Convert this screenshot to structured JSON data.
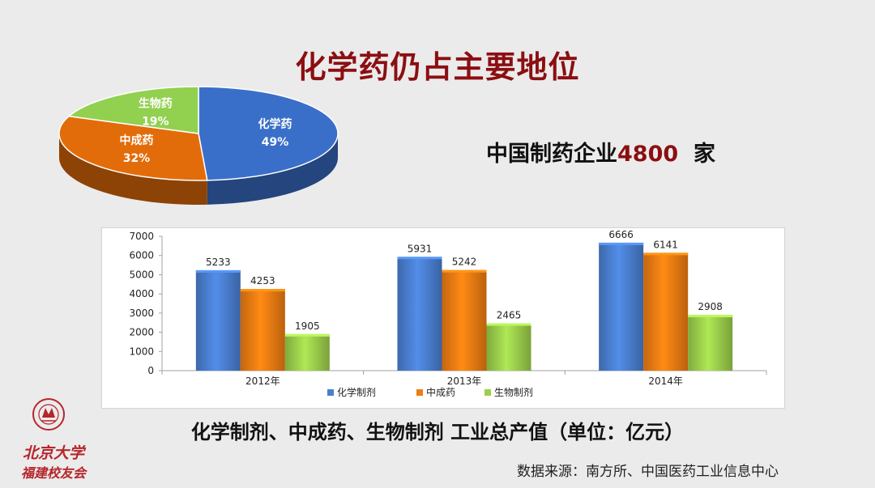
{
  "title": "化学药仍占主要地位",
  "enterprise": {
    "prefix": "中国制药企业",
    "number": "4800",
    "suffix": "家"
  },
  "pie_chart": {
    "type": "pie",
    "slices": [
      {
        "label": "化学药",
        "value": 49,
        "display": "49%",
        "color": "#3a6fc9"
      },
      {
        "label": "中成药",
        "value": 32,
        "display": "32%",
        "color": "#e36c0a"
      },
      {
        "label": "生物药",
        "value": 19,
        "display": "19%",
        "color": "#92d050"
      }
    ]
  },
  "chart_data": {
    "type": "bar",
    "categories": [
      "2012年",
      "2013年",
      "2014年"
    ],
    "series": [
      {
        "name": "化学制剂",
        "values": [
          5233,
          5931,
          6666
        ],
        "color": "#4a7fd0"
      },
      {
        "name": "中成药",
        "values": [
          4253,
          5242,
          6141
        ],
        "color": "#f07c12"
      },
      {
        "name": "生物制剂",
        "values": [
          1905,
          2465,
          2908
        ],
        "color": "#9ccf4c"
      }
    ],
    "yticks": [
      0,
      1000,
      2000,
      3000,
      4000,
      5000,
      6000,
      7000
    ],
    "ylim": [
      0,
      7000
    ],
    "legend": "bottom"
  },
  "caption": "化学制剂、中成药、生物制剂 工业总产值（单位：亿元）",
  "source": "数据来源：南方所、中国医药工业信息中心",
  "logo": {
    "line1": "北京大学",
    "line2": "福建校友会"
  }
}
